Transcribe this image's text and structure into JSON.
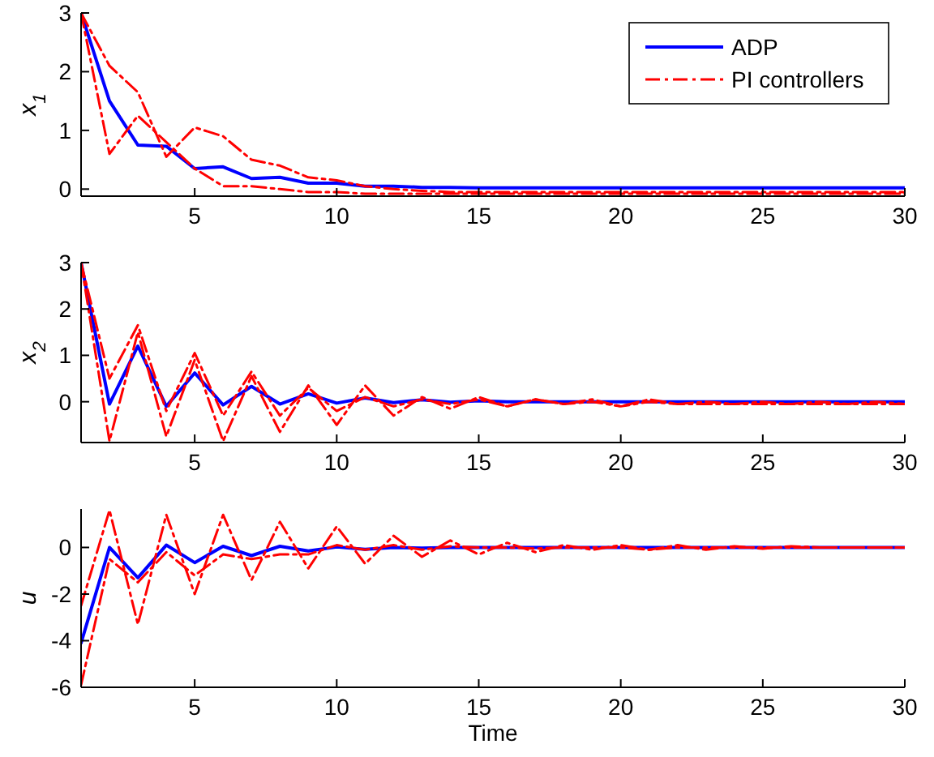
{
  "chart_data": [
    {
      "type": "line",
      "ylabel": "x$_{1}$",
      "x": [
        1,
        2,
        3,
        4,
        5,
        6,
        7,
        8,
        9,
        10,
        11,
        12,
        13,
        14,
        15,
        16,
        17,
        18,
        19,
        20,
        21,
        22,
        23,
        24,
        25,
        26,
        27,
        28,
        29,
        30
      ],
      "xlim": [
        1,
        30
      ],
      "xticks": [
        5,
        10,
        15,
        20,
        25,
        30
      ],
      "ylim": [
        -0.12,
        3
      ],
      "yticks": [
        0,
        1,
        2,
        3
      ],
      "legend": "top right",
      "series": [
        {
          "name": "ADP",
          "color": "#0000ff",
          "line_style": "solid",
          "values": [
            3,
            1.5,
            0.75,
            0.73,
            0.35,
            0.38,
            0.18,
            0.2,
            0.1,
            0.1,
            0.05,
            0.05,
            0.03,
            0.03,
            0.02,
            0.02,
            0.02,
            0.02,
            0.02,
            0.02,
            0.02,
            0.02,
            0.02,
            0.02,
            0.02,
            0.02,
            0.02,
            0.02,
            0.02,
            0.02
          ]
        },
        {
          "name": "PI controllers",
          "color": "#ff0000",
          "line_style": "dashed",
          "values": [
            3,
            2.1,
            1.65,
            0.55,
            1.05,
            0.9,
            0.5,
            0.4,
            0.2,
            0.15,
            0.05,
            0,
            -0.03,
            -0.05,
            -0.05,
            -0.05,
            -0.05,
            -0.05,
            -0.05,
            -0.05,
            -0.05,
            -0.05,
            -0.05,
            -0.05,
            -0.05,
            -0.05,
            -0.05,
            -0.05,
            -0.05,
            -0.05
          ]
        },
        {
          "color": "#ff0000",
          "line_style": "dashed",
          "values": [
            3,
            0.6,
            1.25,
            0.8,
            0.35,
            0.05,
            0.05,
            0,
            -0.05,
            -0.05,
            -0.08,
            -0.08,
            -0.08,
            -0.08,
            -0.08,
            -0.08,
            -0.08,
            -0.08,
            -0.08,
            -0.08,
            -0.08,
            -0.08,
            -0.08,
            -0.08,
            -0.08,
            -0.08,
            -0.08,
            -0.08,
            -0.08,
            -0.08
          ]
        }
      ]
    },
    {
      "type": "line",
      "ylabel": "x$_{2}$",
      "x": [
        1,
        2,
        3,
        4,
        5,
        6,
        7,
        8,
        9,
        10,
        11,
        12,
        13,
        14,
        15,
        16,
        17,
        18,
        19,
        20,
        21,
        22,
        23,
        24,
        25,
        26,
        27,
        28,
        29,
        30
      ],
      "xlim": [
        1,
        30
      ],
      "xticks": [
        5,
        10,
        15,
        20,
        25,
        30
      ],
      "ylim": [
        -0.88,
        3
      ],
      "yticks": [
        0,
        1,
        2,
        3
      ],
      "series": [
        {
          "color": "#0000ff",
          "line_style": "solid",
          "values": [
            3,
            -0.05,
            1.2,
            -0.1,
            0.62,
            -0.07,
            0.33,
            -0.05,
            0.17,
            -0.03,
            0.08,
            -0.02,
            0.04,
            -0.01,
            0.02,
            0,
            0,
            0,
            0,
            0,
            0,
            0,
            0,
            0,
            0,
            0,
            0,
            0,
            0,
            0
          ]
        },
        {
          "color": "#ff0000",
          "line_style": "dashed",
          "values": [
            3,
            0.5,
            1.65,
            -0.2,
            1.05,
            -0.3,
            0.65,
            -0.3,
            0.3,
            -0.2,
            0.1,
            -0.1,
            0.05,
            -0.05,
            0.05,
            -0.1,
            0.05,
            -0.05,
            0.05,
            -0.1,
            0.05,
            -0.05,
            0,
            -0.05,
            0,
            -0.05,
            0,
            -0.05,
            0,
            -0.05
          ]
        },
        {
          "color": "#ff0000",
          "line_style": "dashed",
          "values": [
            3,
            -0.85,
            1.5,
            -0.75,
            0.9,
            -0.85,
            0.55,
            -0.65,
            0.35,
            -0.5,
            0.35,
            -0.3,
            0.1,
            -0.15,
            0.1,
            -0.1,
            0.05,
            -0.05,
            0,
            -0.1,
            0,
            -0.05,
            -0.05,
            -0.05,
            -0.05,
            -0.05,
            -0.05,
            -0.05,
            -0.05,
            -0.05
          ]
        }
      ]
    },
    {
      "type": "line",
      "ylabel": "u",
      "xlabel": "Time",
      "x": [
        1,
        2,
        3,
        4,
        5,
        6,
        7,
        8,
        9,
        10,
        11,
        12,
        13,
        14,
        15,
        16,
        17,
        18,
        19,
        20,
        21,
        22,
        23,
        24,
        25,
        26,
        27,
        28,
        29,
        30
      ],
      "xlim": [
        1,
        30
      ],
      "xticks": [
        5,
        10,
        15,
        20,
        25,
        30
      ],
      "ylim": [
        -6,
        1.65
      ],
      "yticks": [
        -6,
        -4,
        -2,
        0
      ],
      "series": [
        {
          "color": "#0000ff",
          "line_style": "solid",
          "values": [
            -4.1,
            0,
            -1.3,
            0.1,
            -0.65,
            0.05,
            -0.35,
            0.05,
            -0.15,
            0.02,
            -0.08,
            0,
            -0.03,
            0,
            0,
            0,
            0,
            0,
            0,
            0,
            0,
            0,
            0,
            0,
            0,
            0,
            0,
            0,
            0,
            0
          ]
        },
        {
          "color": "#ff0000",
          "line_style": "dashed",
          "values": [
            -2.5,
            1.6,
            -3.3,
            1.4,
            -2,
            1.4,
            -1.4,
            1.1,
            -0.9,
            0.9,
            -0.7,
            0.5,
            -0.4,
            0.3,
            -0.3,
            0.2,
            -0.2,
            0.1,
            -0.1,
            0.1,
            -0.1,
            0.1,
            -0.1,
            0.05,
            -0.05,
            0.05,
            0,
            0,
            0,
            0
          ]
        },
        {
          "color": "#ff0000",
          "line_style": "dashed",
          "values": [
            -5.9,
            -0.5,
            -1.5,
            -0.2,
            -1.2,
            -0.3,
            -0.5,
            -0.3,
            -0.3,
            0.1,
            -0.1,
            0.1,
            -0.1,
            0.05,
            0,
            0,
            -0.05,
            0,
            0,
            0,
            -0.1,
            0,
            0,
            0,
            0,
            0,
            0,
            0,
            0,
            0
          ]
        }
      ]
    }
  ]
}
